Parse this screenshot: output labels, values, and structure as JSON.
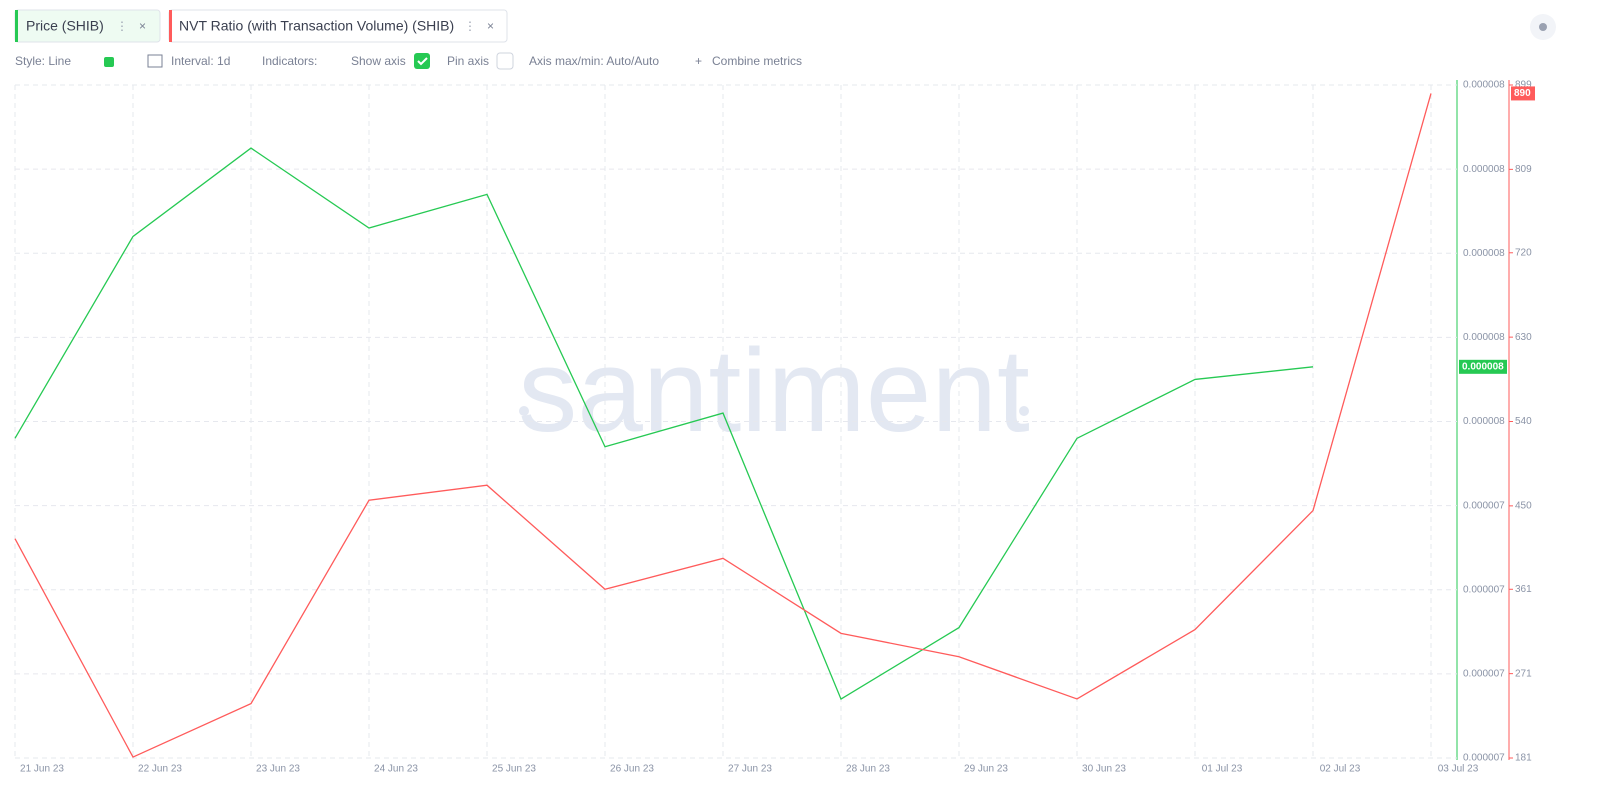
{
  "tabs": [
    "Price (SHIB)",
    "NVT Ratio (with Transaction Volume) (SHIB)"
  ],
  "toolbar": {
    "style": "Style: Line",
    "interval": "Interval: 1d",
    "indicators": "Indicators:",
    "show_axis": "Show axis",
    "pin_axis": "Pin axis",
    "axis_minmax": "Axis max/min: Auto/Auto",
    "combine": "Combine metrics"
  },
  "watermark": "santiment",
  "chart_data": {
    "type": "line",
    "categories": [
      "21 Jun 23",
      "22 Jun 23",
      "23 Jun 23",
      "24 Jun 23",
      "25 Jun 23",
      "26 Jun 23",
      "27 Jun 23",
      "28 Jun 23",
      "29 Jun 23",
      "30 Jun 23",
      "01 Jul 23",
      "02 Jul 23",
      "03 Jul 23"
    ],
    "series": [
      {
        "name": "Price (SHIB)",
        "color": "#26c953",
        "axis": "y",
        "values": [
          7.56e-06,
          8.04e-06,
          8.25e-06,
          8.06e-06,
          8.14e-06,
          7.54e-06,
          7.62e-06,
          6.94e-06,
          7.11e-06,
          7.56e-06,
          7.7e-06,
          7.73e-06,
          null
        ],
        "value_labels": [
          null,
          null,
          null,
          null,
          null,
          null,
          null,
          null,
          null,
          null,
          null,
          "0.000008",
          null
        ]
      },
      {
        "name": "NVT Ratio (with Transaction Volume) (SHIB)",
        "color": "#ff5b5b",
        "axis": "y2",
        "values": [
          415,
          182,
          239,
          456,
          472,
          361,
          394,
          314,
          289,
          244,
          318,
          445,
          890
        ]
      }
    ],
    "ylim": [
      6.8e-06,
      8.4e-06
    ],
    "yticks": [
      {
        "value": 6.8e-06,
        "label": "0.000007"
      },
      7e-06,
      {
        "value": 7.2e-06,
        "label": "0.000007"
      },
      {
        "value": 7.4e-06,
        "label": "0.000007"
      },
      {
        "value": 7.6e-06,
        "label": "0.000008"
      },
      {
        "value": 7.8e-06,
        "label": "0.000008"
      },
      8e-06,
      {
        "value": 8.2e-06,
        "label": "0.000008"
      },
      {
        "value": 8.4e-06,
        "label": "0.000008"
      }
    ],
    "y2lim": [
      181,
      899
    ],
    "y2ticks": [
      181,
      271,
      361,
      450,
      540,
      630,
      720,
      809,
      899
    ],
    "grid": true
  }
}
